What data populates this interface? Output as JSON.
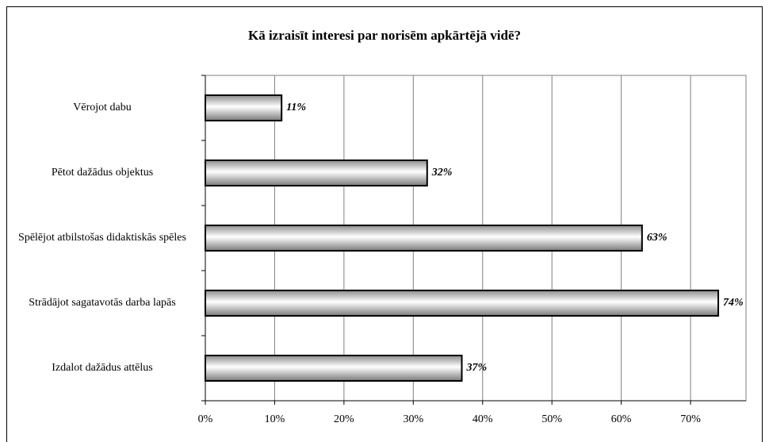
{
  "chart_data": {
    "type": "bar",
    "orientation": "horizontal",
    "title": "Kā izraisīt interesi par norisēm apkārtējā vidē?",
    "categories": [
      "Vērojot dabu",
      "Pētot dažādus objektus",
      "Spēlējot atbilstošas didaktiskās spēles",
      "Strādājot sagatavotās darba lapās",
      "Izdalot dažādus attēlus"
    ],
    "values": [
      11,
      32,
      63,
      74,
      37
    ],
    "value_labels": [
      "11%",
      "32%",
      "63%",
      "74%",
      "37%"
    ],
    "color": "#c0c0c0",
    "xlim": [
      0,
      78
    ],
    "xticks": [
      {
        "value": 0,
        "label": "0%"
      },
      {
        "value": 10,
        "label": "10%"
      },
      {
        "value": 20,
        "label": "20%"
      },
      {
        "value": 30,
        "label": "30%"
      },
      {
        "value": 40,
        "label": "40%"
      },
      {
        "value": 50,
        "label": "50%"
      },
      {
        "value": 60,
        "label": "60%"
      },
      {
        "value": 70,
        "label": "70%"
      }
    ],
    "grid": true
  }
}
